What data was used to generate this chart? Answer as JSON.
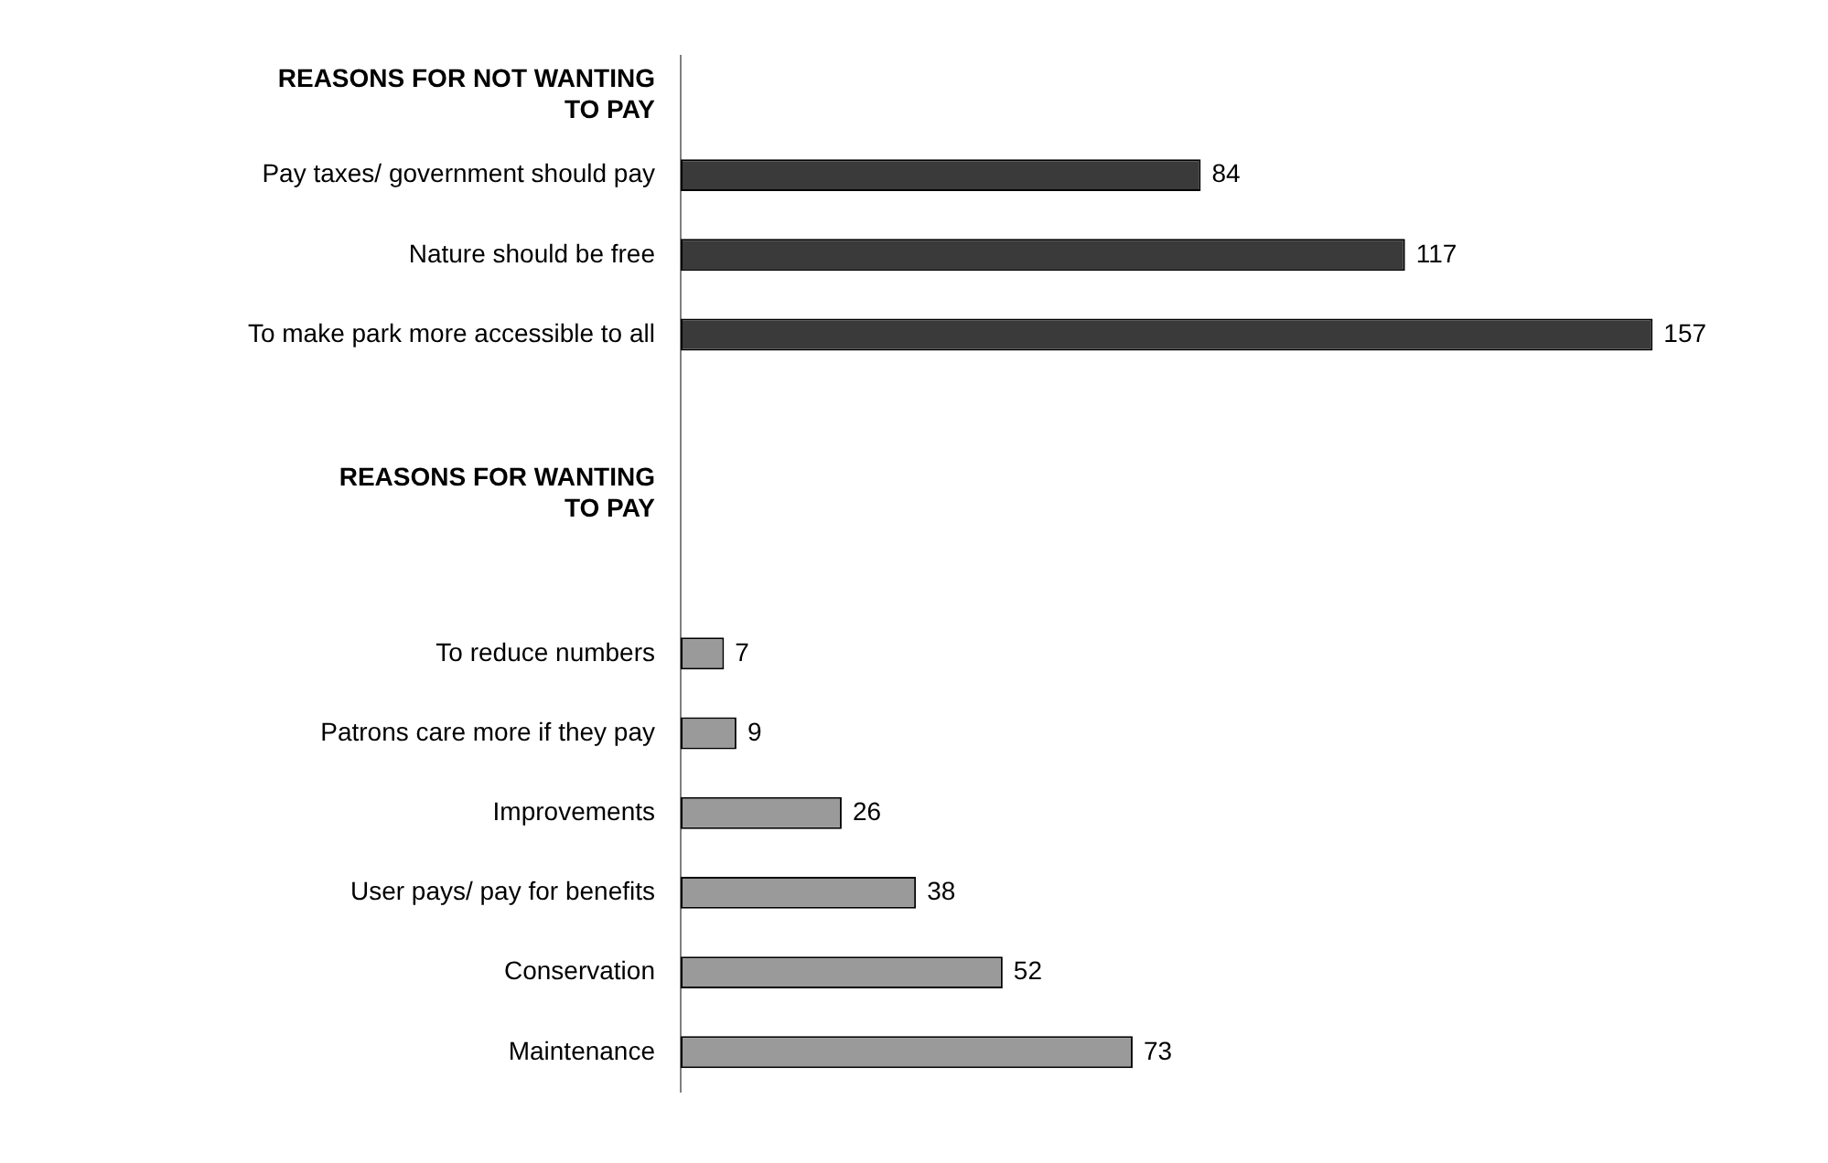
{
  "chart_data": {
    "type": "bar",
    "orientation": "horizontal",
    "categories": [
      "REASONS FOR NOT WANTING TO PAY",
      "Pay taxes/ government should pay",
      "Nature should be free",
      "To make park more accessible to all",
      null,
      "REASONS FOR WANTING TO PAY",
      null,
      "To reduce numbers",
      "Patrons care more if they pay",
      "Improvements",
      "User pays/ pay for benefits",
      "Conservation",
      "Maintenance"
    ],
    "values": [
      null,
      84,
      117,
      157,
      null,
      null,
      null,
      7,
      9,
      26,
      38,
      52,
      73
    ],
    "colors": [
      "#3a3a3a",
      "#3a3a3a",
      "#3a3a3a",
      "#3a3a3a",
      "#3a3a3a",
      "#9a9a9a",
      "#9a9a9a",
      "#9a9a9a",
      "#9a9a9a",
      "#9a9a9a",
      "#9a9a9a",
      "#9a9a9a",
      "#9a9a9a"
    ],
    "data_labels": true
  }
}
